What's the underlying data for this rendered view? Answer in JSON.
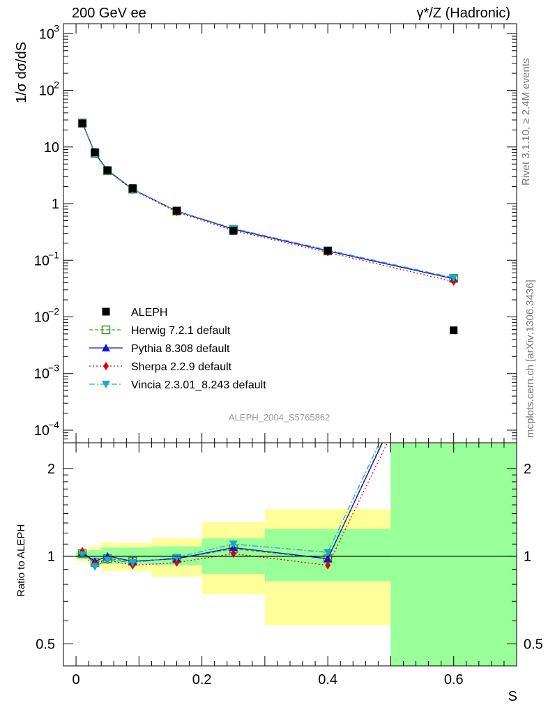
{
  "header": {
    "title_left": "200 GeV ee",
    "title_right": "γ*/Z (Hadronic)"
  },
  "side_labels": {
    "top": "Rivet 3.1.10, ≥ 2.4M events",
    "bottom": "mcplots.cern.ch [arXiv:1306.3436]"
  },
  "colors": {
    "data": "#000000",
    "herwig": "#3a9a1e",
    "pythia": "#1414d4",
    "sherpa": "#e00000",
    "vincia": "#1aaac8",
    "band_outer": "#ffff99",
    "band_inner": "#99ff99"
  },
  "chart_data": [
    {
      "type": "line",
      "scale": "log",
      "ylabel": "1/σ  dσ/dS",
      "xlabel": "S",
      "analysis": "ALEPH_2004_S5765862",
      "xlim": [
        -0.02,
        0.7
      ],
      "ylim": [
        6e-05,
        1500
      ],
      "y_ticks": [
        {
          "value": 1000,
          "label": "10",
          "exp": "3"
        },
        {
          "value": 100,
          "label": "10",
          "exp": "2"
        },
        {
          "value": 10,
          "label": "10",
          "exp": ""
        },
        {
          "value": 1,
          "label": "1",
          "exp": ""
        },
        {
          "value": 0.1,
          "label": "10",
          "exp": "−1"
        },
        {
          "value": 0.01,
          "label": "10",
          "exp": "−2"
        },
        {
          "value": 0.001,
          "label": "10",
          "exp": "−3"
        },
        {
          "value": 0.0001,
          "label": "10",
          "exp": "−4"
        }
      ],
      "legend_position": "lower-left",
      "data": {
        "name": "ALEPH",
        "x": [
          0.01,
          0.03,
          0.05,
          0.09,
          0.16,
          0.25,
          0.4,
          0.6
        ],
        "y": [
          26.0,
          8.1,
          3.9,
          1.88,
          0.75,
          0.33,
          0.148,
          0.0058
        ],
        "bin_edges": [
          0.0,
          0.02,
          0.04,
          0.06,
          0.12,
          0.2,
          0.3,
          0.5,
          0.7
        ]
      },
      "series": [
        {
          "name": "Herwig 7.2.1 default",
          "key": "herwig",
          "marker": "open-square",
          "dash": "5,3",
          "x": [
            0.01,
            0.03,
            0.05,
            0.09,
            0.16,
            0.25,
            0.4,
            0.6
          ],
          "y": [
            26.4,
            7.7,
            3.8,
            1.8,
            0.74,
            0.35,
            0.146,
            0.048
          ]
        },
        {
          "name": "Pythia 8.308 default",
          "key": "pythia",
          "marker": "triangle-up",
          "dash": "",
          "x": [
            0.01,
            0.03,
            0.05,
            0.09,
            0.16,
            0.25,
            0.4,
            0.6
          ],
          "y": [
            26.8,
            7.8,
            3.9,
            1.8,
            0.74,
            0.355,
            0.146,
            0.047
          ]
        },
        {
          "name": "Sherpa 2.2.9 default",
          "key": "sherpa",
          "marker": "diamond",
          "dash": "2,3",
          "x": [
            0.01,
            0.03,
            0.05,
            0.09,
            0.16,
            0.25,
            0.4,
            0.6
          ],
          "y": [
            27.0,
            7.6,
            3.8,
            1.75,
            0.71,
            0.335,
            0.138,
            0.042
          ]
        },
        {
          "name": "Vincia 2.3.01_8.243 default",
          "key": "vincia",
          "marker": "triangle-down",
          "dash": "8,3,2,3",
          "x": [
            0.01,
            0.03,
            0.05,
            0.09,
            0.16,
            0.25,
            0.4,
            0.6
          ],
          "y": [
            26.3,
            7.5,
            3.8,
            1.78,
            0.74,
            0.365,
            0.152,
            0.049
          ]
        }
      ]
    },
    {
      "type": "line",
      "scale": "log",
      "ylabel": "Ratio to ALEPH",
      "xlabel": "S",
      "xlim": [
        -0.02,
        0.7
      ],
      "ylim": [
        0.42,
        2.45
      ],
      "y_ticks": [
        {
          "value": 0.5,
          "label": "0.5"
        },
        {
          "value": 1,
          "label": "1"
        },
        {
          "value": 2,
          "label": "2"
        }
      ],
      "x_ticks": [
        {
          "value": 0,
          "label": "0"
        },
        {
          "value": 0.2,
          "label": "0.2"
        },
        {
          "value": 0.4,
          "label": "0.4"
        },
        {
          "value": 0.6,
          "label": "0.6"
        }
      ],
      "bands": [
        {
          "x0": 0.0,
          "x1": 0.02,
          "outer": [
            0.96,
            1.05
          ],
          "inner": [
            0.98,
            1.03
          ]
        },
        {
          "x0": 0.02,
          "x1": 0.04,
          "outer": [
            0.93,
            1.08
          ],
          "inner": [
            0.96,
            1.05
          ]
        },
        {
          "x0": 0.04,
          "x1": 0.06,
          "outer": [
            0.89,
            1.12
          ],
          "inner": [
            0.94,
            1.07
          ]
        },
        {
          "x0": 0.06,
          "x1": 0.12,
          "outer": [
            0.89,
            1.11
          ],
          "inner": [
            0.94,
            1.07
          ]
        },
        {
          "x0": 0.12,
          "x1": 0.2,
          "outer": [
            0.85,
            1.15
          ],
          "inner": [
            0.93,
            1.08
          ]
        },
        {
          "x0": 0.2,
          "x1": 0.3,
          "outer": [
            0.74,
            1.31
          ],
          "inner": [
            0.87,
            1.15
          ]
        },
        {
          "x0": 0.3,
          "x1": 0.5,
          "outer": [
            0.58,
            1.45
          ],
          "inner": [
            0.82,
            1.24
          ]
        },
        {
          "x0": 0.5,
          "x1": 0.7,
          "outer": [
            0.42,
            2.45
          ],
          "inner": [
            0.42,
            2.45
          ]
        }
      ],
      "series": [
        {
          "name": "Herwig 7.2.1 default",
          "key": "herwig",
          "marker": "open-square",
          "dash": "5,3",
          "x": [
            0.01,
            0.03,
            0.05,
            0.09,
            0.16,
            0.25,
            0.4,
            0.6
          ],
          "y": [
            1.02,
            0.95,
            0.98,
            0.96,
            0.98,
            1.06,
            0.98,
            8.3
          ]
        },
        {
          "name": "Pythia 8.308 default",
          "key": "pythia",
          "marker": "triangle-up",
          "dash": "",
          "x": [
            0.01,
            0.03,
            0.05,
            0.09,
            0.16,
            0.25,
            0.4,
            0.6
          ],
          "y": [
            1.03,
            0.96,
            1.0,
            0.96,
            0.98,
            1.07,
            0.98,
            8.1
          ]
        },
        {
          "name": "Sherpa 2.2.9 default",
          "key": "sherpa",
          "marker": "diamond",
          "dash": "2,3",
          "x": [
            0.01,
            0.03,
            0.05,
            0.09,
            0.16,
            0.25,
            0.4,
            0.6
          ],
          "y": [
            1.04,
            0.94,
            0.97,
            0.93,
            0.95,
            1.02,
            0.93,
            7.2
          ]
        },
        {
          "name": "Vincia 2.3.01_8.243 default",
          "key": "vincia",
          "marker": "triangle-down",
          "dash": "8,3,2,3",
          "x": [
            0.01,
            0.03,
            0.05,
            0.09,
            0.16,
            0.25,
            0.4,
            0.6
          ],
          "y": [
            1.01,
            0.92,
            0.97,
            0.95,
            0.99,
            1.1,
            1.03,
            8.5
          ]
        }
      ]
    }
  ]
}
